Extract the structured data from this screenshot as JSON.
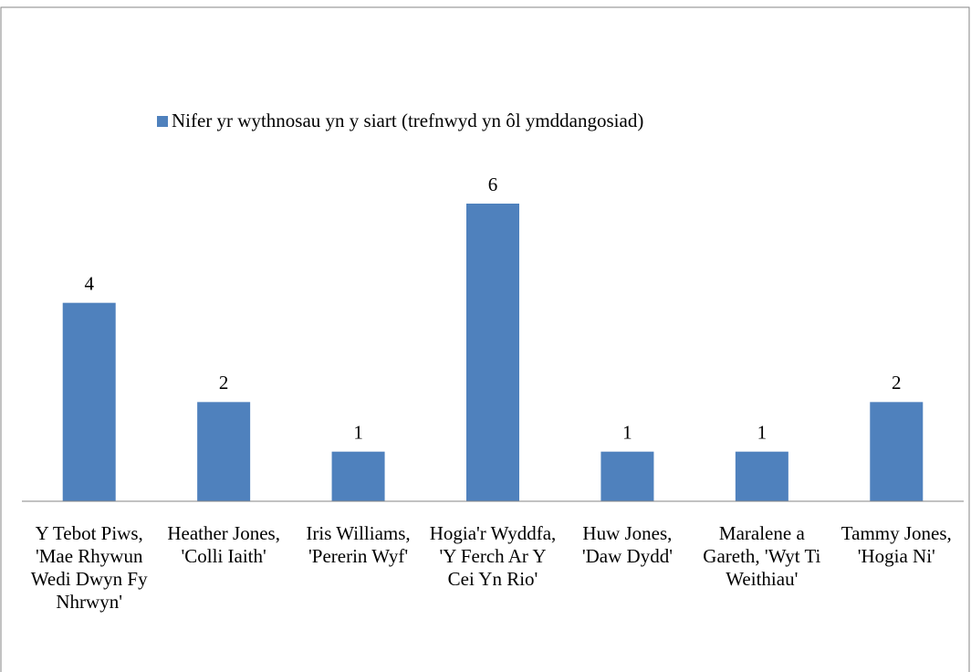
{
  "chart_data": {
    "type": "bar",
    "legend": "Nifer yr wythnosau yn y siart (trefnwyd yn ôl ymddangosiad)",
    "categories": [
      "Y Tebot Piws, 'Mae Rhywun Wedi Dwyn Fy Nhrwyn'",
      "Heather Jones, 'Colli Iaith'",
      "Iris Williams, 'Pererin Wyf'",
      "Hogia'r Wyddfa, 'Y Ferch Ar Y Cei Yn Rio'",
      "Huw Jones, 'Daw Dydd'",
      "Maralene a Gareth, 'Wyt Ti Weithiau'",
      "Tammy Jones, 'Hogia Ni'"
    ],
    "values": [
      4,
      2,
      1,
      6,
      1,
      1,
      2
    ],
    "color": "#4f81bd"
  }
}
